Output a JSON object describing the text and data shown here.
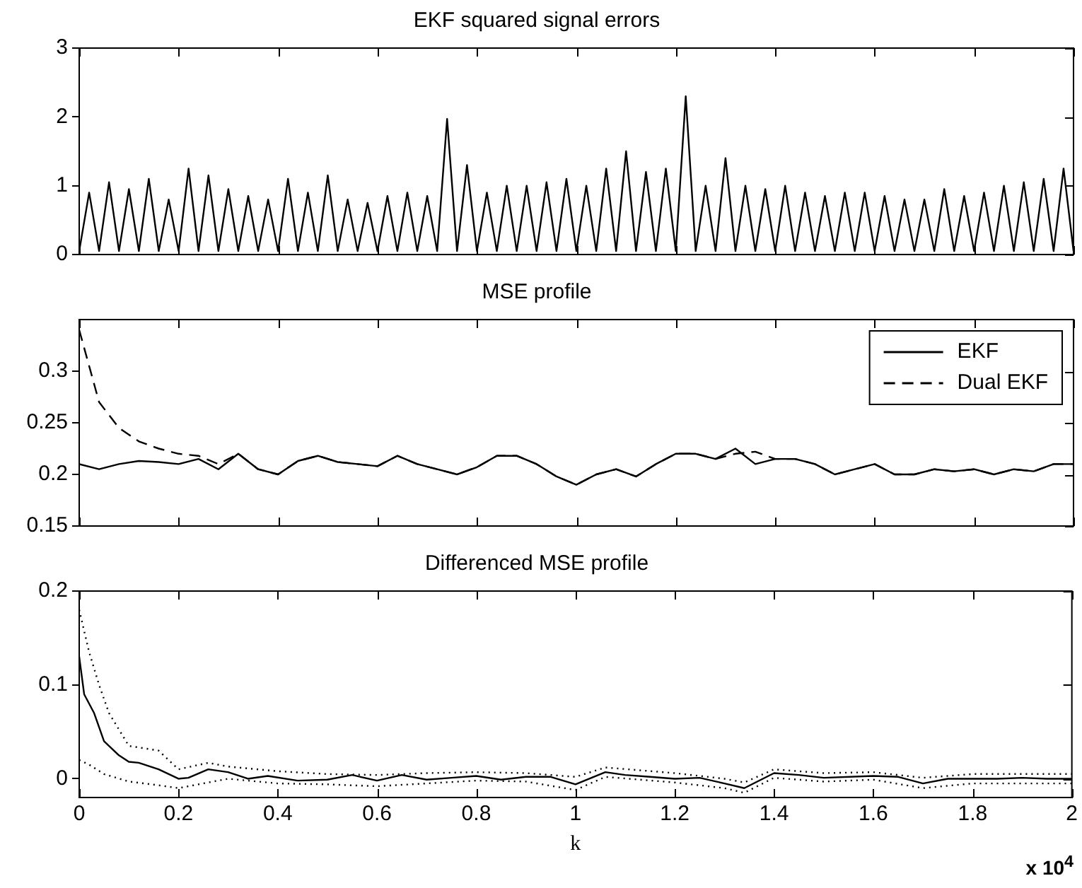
{
  "chart_data": [
    {
      "type": "line",
      "title": "EKF squared signal errors",
      "color": "#000000",
      "marker": "none",
      "line_style": "solid",
      "grid": false,
      "tick_labels": "y",
      "xlim": [
        0,
        2
      ],
      "xticks": [
        0,
        0.2,
        0.4,
        0.6,
        0.8,
        1,
        1.2,
        1.4,
        1.6,
        1.8,
        2
      ],
      "ylim": [
        0,
        3
      ],
      "yticks": [
        0,
        1,
        2,
        3
      ],
      "x": [
        0,
        0.02,
        0.04,
        0.06,
        0.08,
        0.1,
        0.12,
        0.14,
        0.16,
        0.18,
        0.2,
        0.22,
        0.24,
        0.26,
        0.28,
        0.3,
        0.32,
        0.34,
        0.36,
        0.38,
        0.4,
        0.42,
        0.44,
        0.46,
        0.48,
        0.5,
        0.52,
        0.54,
        0.56,
        0.58,
        0.6,
        0.62,
        0.64,
        0.66,
        0.68,
        0.7,
        0.72,
        0.74,
        0.76,
        0.78,
        0.8,
        0.82,
        0.84,
        0.86,
        0.88,
        0.9,
        0.92,
        0.94,
        0.96,
        0.98,
        1,
        1.02,
        1.04,
        1.06,
        1.08,
        1.1,
        1.12,
        1.14,
        1.16,
        1.18,
        1.2,
        1.22,
        1.24,
        1.26,
        1.28,
        1.3,
        1.32,
        1.34,
        1.36,
        1.38,
        1.4,
        1.42,
        1.44,
        1.46,
        1.48,
        1.5,
        1.52,
        1.54,
        1.56,
        1.58,
        1.6,
        1.62,
        1.64,
        1.66,
        1.68,
        1.7,
        1.72,
        1.74,
        1.76,
        1.78,
        1.8,
        1.82,
        1.84,
        1.86,
        1.88,
        1.9,
        1.92,
        1.94,
        1.96,
        1.98,
        2
      ],
      "values": [
        0.05,
        0.9,
        0.05,
        1.05,
        0.05,
        0.95,
        0.05,
        1.1,
        0.05,
        0.8,
        0.05,
        1.25,
        0.05,
        1.15,
        0.05,
        0.95,
        0.05,
        0.85,
        0.05,
        0.8,
        0.05,
        1.1,
        0.05,
        0.9,
        0.05,
        1.15,
        0.05,
        0.8,
        0.05,
        0.75,
        0.05,
        0.85,
        0.05,
        0.9,
        0.05,
        0.85,
        0.05,
        1.97,
        0.05,
        1.3,
        0.05,
        0.9,
        0.05,
        1.0,
        0.05,
        1.0,
        0.05,
        1.05,
        0.05,
        1.1,
        0.05,
        1.0,
        0.05,
        1.25,
        0.05,
        1.5,
        0.05,
        1.2,
        0.05,
        1.25,
        0.05,
        2.3,
        0.05,
        1.0,
        0.05,
        1.4,
        0.05,
        1.0,
        0.05,
        0.95,
        0.05,
        1.0,
        0.05,
        0.9,
        0.05,
        0.85,
        0.05,
        0.9,
        0.05,
        0.9,
        0.05,
        0.85,
        0.05,
        0.8,
        0.05,
        0.8,
        0.05,
        0.95,
        0.05,
        0.85,
        0.05,
        0.9,
        0.05,
        1.0,
        0.05,
        1.05,
        0.05,
        1.1,
        0.05,
        1.25,
        0.05
      ]
    },
    {
      "type": "line",
      "title": "MSE profile",
      "marker": "none",
      "grid": false,
      "tick_labels": "y",
      "legend": "top right",
      "xlim": [
        0,
        2
      ],
      "xticks": [
        0,
        0.2,
        0.4,
        0.6,
        0.8,
        1,
        1.2,
        1.4,
        1.6,
        1.8,
        2
      ],
      "ylim": [
        0.15,
        0.35
      ],
      "yticks": [
        0.15,
        0.2,
        0.25,
        0.3
      ],
      "x": [
        0,
        0.04,
        0.08,
        0.12,
        0.16,
        0.2,
        0.24,
        0.28,
        0.32,
        0.36,
        0.4,
        0.44,
        0.48,
        0.52,
        0.56,
        0.6,
        0.64,
        0.68,
        0.72,
        0.76,
        0.8,
        0.84,
        0.88,
        0.92,
        0.96,
        1,
        1.04,
        1.08,
        1.12,
        1.16,
        1.2,
        1.24,
        1.28,
        1.32,
        1.36,
        1.4,
        1.44,
        1.48,
        1.52,
        1.56,
        1.6,
        1.64,
        1.68,
        1.72,
        1.76,
        1.8,
        1.84,
        1.88,
        1.92,
        1.96,
        2
      ],
      "series": [
        {
          "name": "EKF",
          "color": "#000000",
          "line_style": "solid",
          "values": [
            0.21,
            0.205,
            0.21,
            0.213,
            0.212,
            0.21,
            0.215,
            0.205,
            0.22,
            0.205,
            0.2,
            0.213,
            0.218,
            0.212,
            0.21,
            0.208,
            0.218,
            0.21,
            0.205,
            0.2,
            0.207,
            0.218,
            0.218,
            0.21,
            0.198,
            0.19,
            0.2,
            0.205,
            0.198,
            0.21,
            0.22,
            0.22,
            0.215,
            0.225,
            0.21,
            0.215,
            0.215,
            0.21,
            0.2,
            0.205,
            0.21,
            0.2,
            0.2,
            0.205,
            0.203,
            0.205,
            0.2,
            0.205,
            0.203,
            0.21,
            0.21
          ]
        },
        {
          "name": "Dual EKF",
          "color": "#000000",
          "line_style": "dashed",
          "values": [
            0.34,
            0.27,
            0.245,
            0.232,
            0.225,
            0.22,
            0.218,
            0.21,
            0.22,
            0.205,
            0.2,
            0.213,
            0.218,
            0.212,
            0.21,
            0.208,
            0.218,
            0.21,
            0.205,
            0.2,
            0.207,
            0.218,
            0.218,
            0.21,
            0.198,
            0.19,
            0.2,
            0.205,
            0.198,
            0.21,
            0.22,
            0.22,
            0.215,
            0.22,
            0.222,
            0.215,
            0.215,
            0.21,
            0.2,
            0.205,
            0.21,
            0.2,
            0.2,
            0.205,
            0.203,
            0.205,
            0.2,
            0.205,
            0.203,
            0.21,
            0.21
          ]
        }
      ]
    },
    {
      "type": "line",
      "title": "Differenced MSE profile",
      "xlabel": "k",
      "marker": "none",
      "grid": false,
      "annotations": [
        "x 10$^{4}$"
      ],
      "xlim": [
        0,
        2
      ],
      "xticks": [
        0,
        0.2,
        0.4,
        0.6,
        0.8,
        1,
        1.2,
        1.4,
        1.6,
        1.8,
        2
      ],
      "ylim": [
        -0.02,
        0.2
      ],
      "yticks": [
        0,
        0.1,
        0.2
      ],
      "series": [
        {
          "color": "#000000",
          "line_style": "solid",
          "x": [
            0,
            0.01,
            0.03,
            0.05,
            0.08,
            0.1,
            0.12,
            0.16,
            0.2,
            0.22,
            0.26,
            0.3,
            0.34,
            0.38,
            0.44,
            0.5,
            0.55,
            0.6,
            0.65,
            0.7,
            0.75,
            0.8,
            0.85,
            0.9,
            0.95,
            1,
            1.06,
            1.1,
            1.15,
            1.2,
            1.25,
            1.3,
            1.34,
            1.4,
            1.45,
            1.5,
            1.6,
            1.65,
            1.7,
            1.75,
            1.8,
            1.85,
            1.9,
            1.95,
            2
          ],
          "values": [
            0.13,
            0.09,
            0.07,
            0.04,
            0.025,
            0.018,
            0.017,
            0.01,
            0,
            0.001,
            0.01,
            0.007,
            0,
            0.003,
            -0.002,
            -0.001,
            0.004,
            -0.002,
            0.004,
            -0.001,
            0.001,
            0.003,
            -0.001,
            0.002,
            0.002,
            -0.006,
            0.007,
            0.004,
            0.002,
            0,
            0.001,
            -0.005,
            -0.01,
            0.006,
            0.004,
            0.001,
            0.003,
            0.002,
            -0.005,
            0,
            0,
            0,
            0.001,
            0,
            0
          ]
        },
        {
          "color": "#000000",
          "line_style": "dotted",
          "x": [
            0,
            0.02,
            0.04,
            0.06,
            0.1,
            0.16,
            0.2,
            0.26,
            0.3,
            0.4,
            0.5,
            0.6,
            0.7,
            0.8,
            0.9,
            1,
            1.06,
            1.2,
            1.3,
            1.34,
            1.4,
            1.5,
            1.6,
            1.7,
            1.8,
            1.9,
            2
          ],
          "values": [
            0.18,
            0.135,
            0.1,
            0.07,
            0.035,
            0.03,
            0.01,
            0.017,
            0.013,
            0.008,
            0.005,
            0.004,
            0.006,
            0.007,
            0.006,
            0.002,
            0.012,
            0.006,
            0,
            -0.004,
            0.01,
            0.006,
            0.007,
            0.001,
            0.005,
            0.005,
            0.005
          ]
        },
        {
          "color": "#000000",
          "line_style": "dotted",
          "x": [
            0,
            0.02,
            0.05,
            0.1,
            0.16,
            0.2,
            0.3,
            0.4,
            0.5,
            0.6,
            0.7,
            0.8,
            0.9,
            1,
            1.06,
            1.2,
            1.3,
            1.34,
            1.4,
            1.5,
            1.6,
            1.7,
            1.8,
            1.9,
            2
          ],
          "values": [
            0.02,
            0.015,
            0.005,
            -0.003,
            -0.007,
            -0.01,
            0,
            -0.005,
            -0.006,
            -0.008,
            -0.005,
            -0.002,
            -0.003,
            -0.012,
            0.002,
            -0.004,
            -0.01,
            -0.015,
            0.001,
            -0.003,
            -0.001,
            -0.01,
            -0.005,
            -0.005,
            -0.005
          ]
        }
      ]
    }
  ]
}
